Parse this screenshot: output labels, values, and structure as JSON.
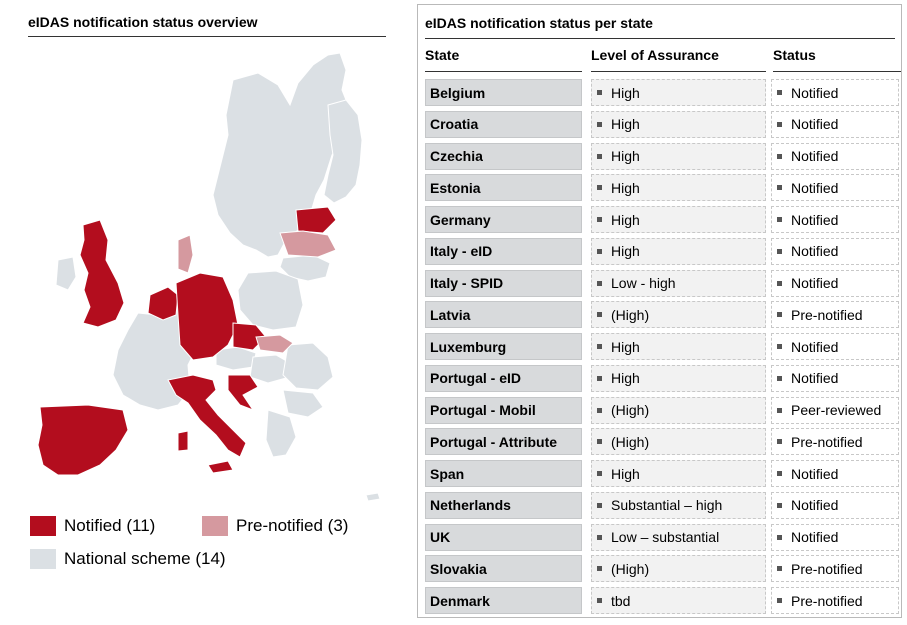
{
  "colors": {
    "notified": "#b30d1e",
    "pre_notified": "#d5999f",
    "national_scheme": "#dbe0e4",
    "border": "#b9b9b9"
  },
  "left_panel": {
    "title": "eIDAS notification status overview",
    "legend": [
      {
        "label": "Notified (11)",
        "color": "#b30d1e"
      },
      {
        "label": "Pre-notified (3)",
        "color": "#d5999f"
      },
      {
        "label": "National scheme (14)",
        "color": "#dbe0e4"
      }
    ]
  },
  "right_panel": {
    "title": "eIDAS notification status per state",
    "headers": {
      "state": "State",
      "loa": "Level of Assurance",
      "status": "Status"
    },
    "rows": [
      {
        "state": "Belgium",
        "loa": "High",
        "status": "Notified"
      },
      {
        "state": "Croatia",
        "loa": "High",
        "status": "Notified"
      },
      {
        "state": "Czechia",
        "loa": "High",
        "status": "Notified"
      },
      {
        "state": "Estonia",
        "loa": "High",
        "status": "Notified"
      },
      {
        "state": "Germany",
        "loa": "High",
        "status": "Notified"
      },
      {
        "state": "Italy - eID",
        "loa": "High",
        "status": "Notified"
      },
      {
        "state": "Italy - SPID",
        "loa": "Low - high",
        "status": "Notified"
      },
      {
        "state": "Latvia",
        "loa": "(High)",
        "status": "Pre-notified"
      },
      {
        "state": "Luxemburg",
        "loa": "High",
        "status": "Notified"
      },
      {
        "state": "Portugal - eID",
        "loa": "High",
        "status": "Notified"
      },
      {
        "state": "Portugal - Mobil",
        "loa": "(High)",
        "status": "Peer-reviewed"
      },
      {
        "state": "Portugal - Attribute",
        "loa": "(High)",
        "status": "Pre-notified"
      },
      {
        "state": "Span",
        "loa": "High",
        "status": "Notified"
      },
      {
        "state": "Netherlands",
        "loa": "Substantial – high",
        "status": "Notified"
      },
      {
        "state": "UK",
        "loa": "Low – substantial",
        "status": "Notified"
      },
      {
        "state": "Slovakia",
        "loa": "(High)",
        "status": "Pre-notified"
      },
      {
        "state": "Denmark",
        "loa": "tbd",
        "status": "Pre-notified"
      }
    ]
  }
}
